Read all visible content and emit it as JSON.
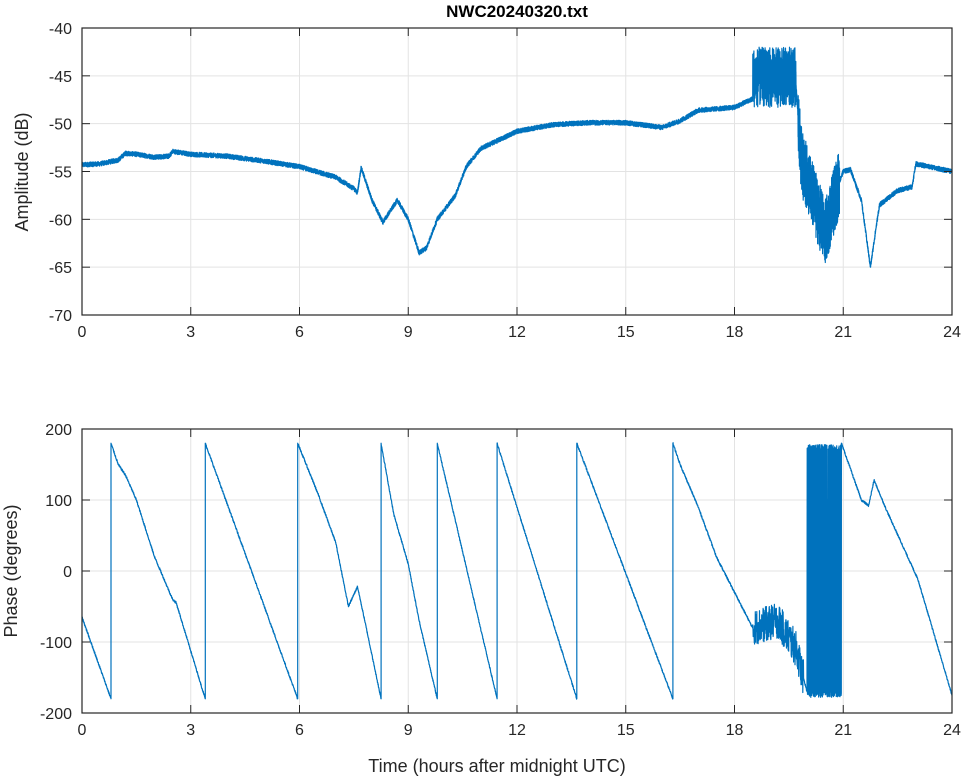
{
  "chart_data": [
    {
      "type": "line",
      "title": "NWC20240320.txt",
      "xlabel": "",
      "ylabel": "Amplitude (dB)",
      "xlim": [
        0,
        24
      ],
      "ylim": [
        -70,
        -40
      ],
      "xticks": [
        0,
        3,
        6,
        9,
        12,
        15,
        18,
        21,
        24
      ],
      "yticks": [
        -70,
        -65,
        -60,
        -55,
        -50,
        -45,
        -40
      ],
      "grid": true,
      "color": "#0072BD",
      "series": [
        {
          "name": "Amplitude",
          "points": [
            [
              0,
              -54.3
            ],
            [
              0.5,
              -54.2
            ],
            [
              1.0,
              -53.8
            ],
            [
              1.2,
              -53.1
            ],
            [
              1.5,
              -53.2
            ],
            [
              2.0,
              -53.5
            ],
            [
              2.4,
              -53.4
            ],
            [
              2.5,
              -52.9
            ],
            [
              3,
              -53.2
            ],
            [
              4,
              -53.4
            ],
            [
              5,
              -53.9
            ],
            [
              6,
              -54.5
            ],
            [
              7,
              -55.6
            ],
            [
              7.5,
              -56.8
            ],
            [
              7.6,
              -57.2
            ],
            [
              7.7,
              -54.6
            ],
            [
              8.0,
              -58
            ],
            [
              8.3,
              -60.3
            ],
            [
              8.7,
              -58.0
            ],
            [
              9.0,
              -60
            ],
            [
              9.3,
              -63.5
            ],
            [
              9.5,
              -63
            ],
            [
              9.8,
              -60
            ],
            [
              10.3,
              -57.5
            ],
            [
              10.6,
              -54.5
            ],
            [
              11,
              -52.6
            ],
            [
              11.5,
              -51.7
            ],
            [
              12,
              -50.8
            ],
            [
              13,
              -50.1
            ],
            [
              14,
              -49.9
            ],
            [
              15,
              -49.9
            ],
            [
              16,
              -50.4
            ],
            [
              16.5,
              -49.7
            ],
            [
              17,
              -48.6
            ],
            [
              18,
              -48.3
            ],
            [
              18.5,
              -47.4
            ],
            [
              19.1,
              -45.5
            ],
            [
              19.7,
              -46
            ],
            [
              19.75,
              -49
            ],
            [
              19.85,
              -54
            ],
            [
              20.2,
              -58
            ],
            [
              20.5,
              -61.5
            ],
            [
              20.9,
              -56
            ],
            [
              21.0,
              -55
            ],
            [
              21.2,
              -54.8
            ],
            [
              21.5,
              -58
            ],
            [
              21.75,
              -65
            ],
            [
              21.9,
              -61
            ],
            [
              22.0,
              -58.5
            ],
            [
              22.5,
              -57
            ],
            [
              22.9,
              -56.6
            ],
            [
              23.0,
              -54.2
            ],
            [
              23.5,
              -54.6
            ],
            [
              24,
              -55
            ]
          ],
          "noise_bands": [
            [
              18.5,
              19.7,
              -49,
              -42
            ],
            [
              19.75,
              20.9,
              -3.5,
              3.5
            ]
          ]
        }
      ]
    },
    {
      "type": "line",
      "title": "",
      "xlabel": "Time (hours after midnight UTC)",
      "ylabel": "Phase (degrees)",
      "xlim": [
        0,
        24
      ],
      "ylim": [
        -200,
        200
      ],
      "xticks": [
        0,
        3,
        6,
        9,
        12,
        15,
        18,
        21,
        24
      ],
      "yticks": [
        -200,
        -100,
        0,
        100,
        200
      ],
      "grid": true,
      "color": "#0072BD",
      "series": [
        {
          "name": "Phase",
          "points": [
            [
              0,
              -65
            ],
            [
              0.8,
              -180
            ],
            [
              0.8,
              180
            ],
            [
              1.0,
              150
            ],
            [
              1.2,
              135
            ],
            [
              1.5,
              100
            ],
            [
              2.0,
              20
            ],
            [
              2.5,
              -40
            ],
            [
              2.6,
              -45
            ],
            [
              3.4,
              -180
            ],
            [
              3.4,
              180
            ],
            [
              5.95,
              -180
            ],
            [
              5.95,
              180
            ],
            [
              6.5,
              110
            ],
            [
              7.0,
              40
            ],
            [
              7.35,
              -50
            ],
            [
              7.6,
              -22
            ],
            [
              7.8,
              -70
            ],
            [
              8.25,
              -180
            ],
            [
              8.25,
              180
            ],
            [
              8.6,
              80
            ],
            [
              9.0,
              10
            ],
            [
              9.3,
              -70
            ],
            [
              9.8,
              -180
            ],
            [
              9.8,
              180
            ],
            [
              11.45,
              -180
            ],
            [
              11.45,
              180
            ],
            [
              13.65,
              -180
            ],
            [
              13.65,
              180
            ],
            [
              16.3,
              -180
            ],
            [
              16.3,
              180
            ],
            [
              16.5,
              150
            ],
            [
              17,
              90
            ],
            [
              17.5,
              20
            ],
            [
              18,
              -30
            ],
            [
              18.5,
              -80
            ],
            [
              19.2,
              -70
            ],
            [
              19.7,
              -110
            ],
            [
              20.0,
              -170
            ],
            [
              20.95,
              180
            ],
            [
              21.5,
              100
            ],
            [
              21.7,
              92
            ],
            [
              21.85,
              128
            ],
            [
              22.2,
              85
            ],
            [
              23,
              -5
            ],
            [
              23.05,
              -10
            ],
            [
              24,
              -175
            ]
          ],
          "noise_bands": [
            [
              18.5,
              19.9,
              -25,
              25
            ],
            [
              20.0,
              20.95,
              -180,
              180
            ]
          ]
        }
      ]
    }
  ]
}
